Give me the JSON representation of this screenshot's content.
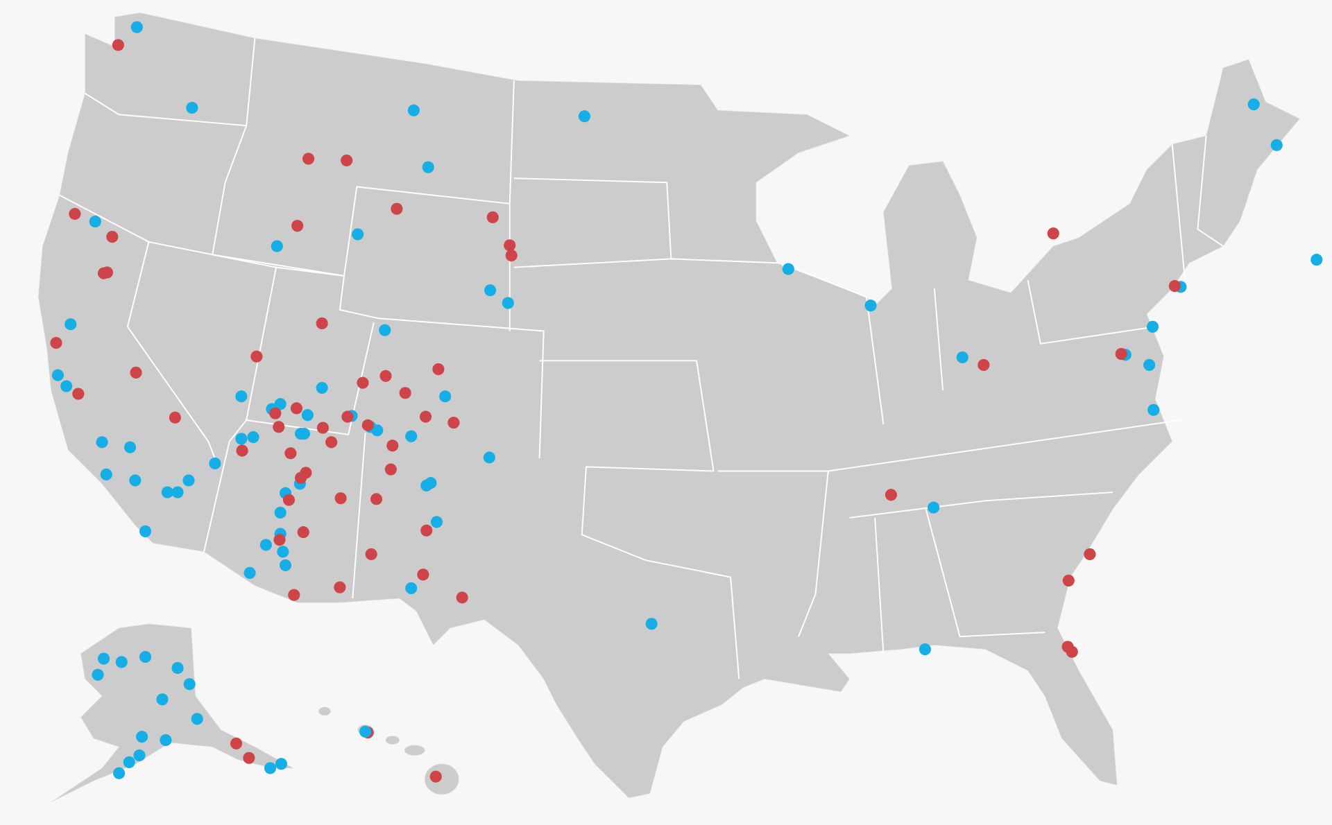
{
  "markers": {
    "colors": [
      "#cf4448",
      "#16aee6"
    ],
    "radius": 7
  }
}
